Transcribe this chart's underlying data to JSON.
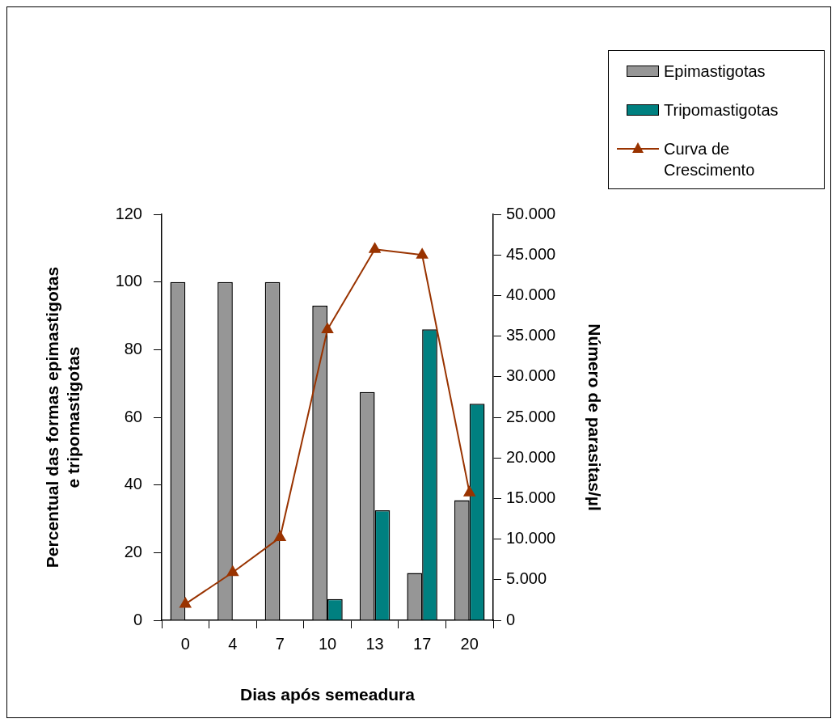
{
  "chart_data": {
    "type": "bar",
    "xlabel": "Dias após semeadura",
    "ylabel": "Percentual das formas epimastigotas e tripomastigotas",
    "y2label": "Número de parasitas/µl",
    "categories": [
      "0",
      "4",
      "7",
      "10",
      "13",
      "17",
      "20"
    ],
    "series": [
      {
        "name": "Epimastigotas",
        "color": "#969696",
        "values": [
          100,
          100,
          100,
          93,
          67.5,
          14,
          35.5
        ]
      },
      {
        "name": "Tripomastigotas",
        "color": "#008080",
        "values": [
          null,
          null,
          null,
          6.3,
          32.5,
          86,
          64
        ]
      },
      {
        "name": "Curva de Crescimento",
        "type": "line",
        "axis": "y2",
        "color": "#993300",
        "marker": "triangle",
        "values": [
          2000,
          5900,
          10200,
          35800,
          45700,
          45000,
          15700
        ]
      }
    ],
    "ylim": [
      0,
      120
    ],
    "yticks": [
      0,
      20,
      40,
      60,
      80,
      100,
      120
    ],
    "y2lim": [
      0,
      50000
    ],
    "y2ticks": [
      {
        "value": 0,
        "label": "0"
      },
      {
        "value": 5000,
        "label": "5.000"
      },
      {
        "value": 10000,
        "label": "10.000"
      },
      {
        "value": 15000,
        "label": "15.000"
      },
      {
        "value": 20000,
        "label": "20.000"
      },
      {
        "value": 25000,
        "label": "25.000"
      },
      {
        "value": 30000,
        "label": "30.000"
      },
      {
        "value": 35000,
        "label": "35.000"
      },
      {
        "value": 40000,
        "label": "40.000"
      },
      {
        "value": 45000,
        "label": "45.000"
      },
      {
        "value": 50000,
        "label": "50.000"
      }
    ],
    "legend": "top right"
  }
}
